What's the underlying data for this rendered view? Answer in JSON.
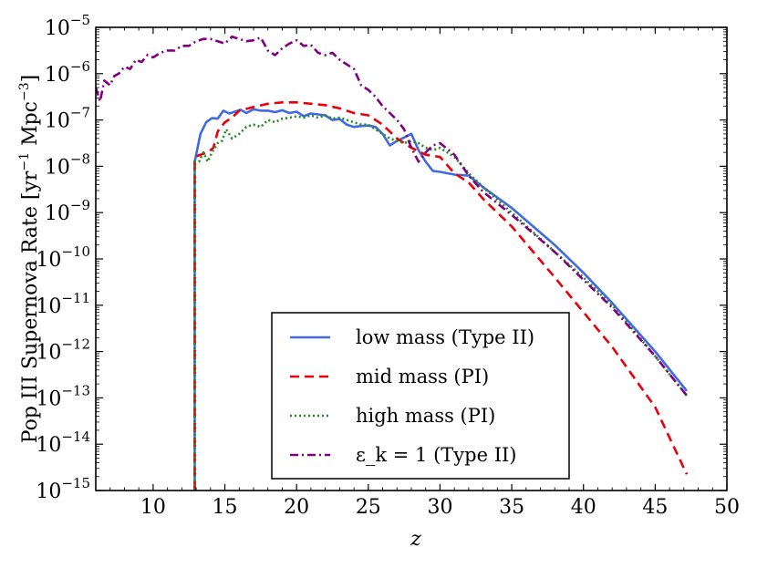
{
  "chart_data": {
    "type": "line",
    "title": "",
    "xlabel": "z",
    "ylabel": "Pop III Supernova Rate [yr⁻¹ Mpc⁻³]",
    "ylabel_parts": {
      "pre": "Pop III Supernova Rate [yr",
      "exp1": "−1",
      "mid": " Mpc",
      "exp2": "−3",
      "post": "]"
    },
    "xlim": [
      6,
      50
    ],
    "ylim_log10": [
      -15,
      -5
    ],
    "y_scale": "log",
    "x_ticks": [
      10,
      15,
      20,
      25,
      30,
      35,
      40,
      45,
      50
    ],
    "y_ticks": [
      {
        "base": "10",
        "exp": "−5",
        "log": -5
      },
      {
        "base": "10",
        "exp": "−6",
        "log": -6
      },
      {
        "base": "10",
        "exp": "−7",
        "log": -7
      },
      {
        "base": "10",
        "exp": "−8",
        "log": -8
      },
      {
        "base": "10",
        "exp": "−9",
        "log": -9
      },
      {
        "base": "10",
        "exp": "−10",
        "log": -10
      },
      {
        "base": "10",
        "exp": "−11",
        "log": -11
      },
      {
        "base": "10",
        "exp": "−12",
        "log": -12
      },
      {
        "base": "10",
        "exp": "−13",
        "log": -13
      },
      {
        "base": "10",
        "exp": "−14",
        "log": -14
      },
      {
        "base": "10",
        "exp": "−15",
        "log": -15
      }
    ],
    "legend_position": "lower-center",
    "series": [
      {
        "name": "low mass (Type II)",
        "color": "#4169e1",
        "dash": "solid",
        "points": [
          [
            12.9,
            -15
          ],
          [
            12.9,
            -7.9
          ],
          [
            13.3,
            -7.3
          ],
          [
            13.7,
            -7.05
          ],
          [
            14.1,
            -6.96
          ],
          [
            14.5,
            -6.97
          ],
          [
            14.9,
            -6.8
          ],
          [
            15.3,
            -6.86
          ],
          [
            15.7,
            -6.82
          ],
          [
            16.1,
            -6.78
          ],
          [
            16.5,
            -6.85
          ],
          [
            17,
            -6.77
          ],
          [
            17.5,
            -6.8
          ],
          [
            18,
            -6.8
          ],
          [
            18.5,
            -6.83
          ],
          [
            19,
            -6.79
          ],
          [
            19.5,
            -6.85
          ],
          [
            20,
            -6.82
          ],
          [
            20.5,
            -6.92
          ],
          [
            21,
            -6.86
          ],
          [
            21.5,
            -6.88
          ],
          [
            22,
            -6.9
          ],
          [
            22.5,
            -7.0
          ],
          [
            23,
            -6.98
          ],
          [
            23.5,
            -7.1
          ],
          [
            24,
            -7.15
          ],
          [
            24.5,
            -7.13
          ],
          [
            25,
            -7.12
          ],
          [
            25.5,
            -7.15
          ],
          [
            26,
            -7.3
          ],
          [
            26.5,
            -7.55
          ],
          [
            27,
            -7.45
          ],
          [
            27.5,
            -7.38
          ],
          [
            28,
            -7.3
          ],
          [
            28.5,
            -7.65
          ],
          [
            29,
            -7.9
          ],
          [
            29.5,
            -8.1
          ],
          [
            30,
            -8.12
          ],
          [
            31,
            -8.18
          ],
          [
            32,
            -8.2
          ],
          [
            33,
            -8.45
          ],
          [
            35,
            -8.9
          ],
          [
            38,
            -9.7
          ],
          [
            40,
            -10.3
          ],
          [
            42,
            -10.95
          ],
          [
            45,
            -12.0
          ],
          [
            47.2,
            -12.85
          ]
        ]
      },
      {
        "name": "mid mass (PI)",
        "color": "#e8000b",
        "dash": "10,6",
        "points": [
          [
            12.9,
            -15
          ],
          [
            12.9,
            -7.8
          ],
          [
            13.3,
            -7.75
          ],
          [
            13.8,
            -7.7
          ],
          [
            14.2,
            -7.6
          ],
          [
            14.5,
            -7.25
          ],
          [
            15,
            -7.05
          ],
          [
            15.5,
            -6.95
          ],
          [
            16,
            -6.8
          ],
          [
            17,
            -6.72
          ],
          [
            18,
            -6.65
          ],
          [
            19,
            -6.62
          ],
          [
            20,
            -6.62
          ],
          [
            21,
            -6.65
          ],
          [
            22,
            -6.68
          ],
          [
            23,
            -6.75
          ],
          [
            24,
            -6.85
          ],
          [
            25,
            -6.9
          ],
          [
            26,
            -7.1
          ],
          [
            27,
            -7.4
          ],
          [
            28,
            -7.6
          ],
          [
            29,
            -7.75
          ],
          [
            30,
            -7.8
          ],
          [
            31,
            -8.15
          ],
          [
            32,
            -8.35
          ],
          [
            33,
            -8.7
          ],
          [
            35,
            -9.3
          ],
          [
            38,
            -10.4
          ],
          [
            40,
            -11.15
          ],
          [
            42,
            -11.9
          ],
          [
            45,
            -13.2
          ],
          [
            47.2,
            -14.65
          ]
        ]
      },
      {
        "name": "high mass (PI)",
        "color": "#228b22",
        "dash": "2,3",
        "points": [
          [
            12.9,
            -15
          ],
          [
            12.9,
            -7.9
          ],
          [
            13.2,
            -7.9
          ],
          [
            13.5,
            -7.7
          ],
          [
            13.8,
            -7.9
          ],
          [
            14.1,
            -7.7
          ],
          [
            14.5,
            -7.5
          ],
          [
            14.8,
            -7.45
          ],
          [
            15.1,
            -7.2
          ],
          [
            15.5,
            -7.4
          ],
          [
            16,
            -7.3
          ],
          [
            16.5,
            -7.15
          ],
          [
            17,
            -7.1
          ],
          [
            17.5,
            -7.15
          ],
          [
            18,
            -7.0
          ],
          [
            18.5,
            -7.05
          ],
          [
            19,
            -6.97
          ],
          [
            19.5,
            -6.95
          ],
          [
            20,
            -6.92
          ],
          [
            20.5,
            -6.95
          ],
          [
            21,
            -6.9
          ],
          [
            21.5,
            -6.95
          ],
          [
            22,
            -6.9
          ],
          [
            22.5,
            -6.97
          ],
          [
            23,
            -6.95
          ],
          [
            23.5,
            -7.0
          ],
          [
            24,
            -7.05
          ],
          [
            24.5,
            -7.1
          ],
          [
            25,
            -7.1
          ],
          [
            25.5,
            -7.2
          ],
          [
            26,
            -7.3
          ],
          [
            26.5,
            -7.4
          ],
          [
            27,
            -7.45
          ],
          [
            27.5,
            -7.5
          ],
          [
            28,
            -7.45
          ],
          [
            28.5,
            -7.5
          ],
          [
            29,
            -7.6
          ],
          [
            29.5,
            -7.65
          ],
          [
            30,
            -7.6
          ],
          [
            31,
            -7.8
          ],
          [
            32,
            -8.15
          ],
          [
            33,
            -8.45
          ],
          [
            35,
            -9.0
          ],
          [
            38,
            -9.85
          ],
          [
            40,
            -10.4
          ],
          [
            42,
            -11.0
          ],
          [
            45,
            -12.1
          ],
          [
            47.2,
            -12.95
          ]
        ]
      },
      {
        "name": "ε_k = 1 (Type II)",
        "color": "#800080",
        "dash": "9,4,2,4",
        "points": [
          [
            6,
            -6.3
          ],
          [
            6.3,
            -6.6
          ],
          [
            6.6,
            -6.15
          ],
          [
            7,
            -6.25
          ],
          [
            7.3,
            -6.05
          ],
          [
            7.6,
            -6.0
          ],
          [
            8,
            -5.85
          ],
          [
            8.4,
            -5.9
          ],
          [
            8.8,
            -5.7
          ],
          [
            9.2,
            -5.75
          ],
          [
            9.6,
            -5.6
          ],
          [
            10,
            -5.65
          ],
          [
            10.5,
            -5.55
          ],
          [
            11,
            -5.5
          ],
          [
            11.5,
            -5.5
          ],
          [
            12,
            -5.4
          ],
          [
            12.5,
            -5.4
          ],
          [
            13,
            -5.3
          ],
          [
            13.5,
            -5.25
          ],
          [
            14,
            -5.25
          ],
          [
            14.5,
            -5.3
          ],
          [
            15,
            -5.35
          ],
          [
            15.5,
            -5.2
          ],
          [
            16,
            -5.25
          ],
          [
            16.5,
            -5.3
          ],
          [
            17,
            -5.28
          ],
          [
            17.5,
            -5.22
          ],
          [
            18,
            -5.5
          ],
          [
            18.5,
            -5.6
          ],
          [
            19,
            -5.45
          ],
          [
            19.5,
            -5.35
          ],
          [
            20,
            -5.28
          ],
          [
            20.5,
            -5.4
          ],
          [
            21,
            -5.38
          ],
          [
            21.5,
            -5.55
          ],
          [
            22,
            -5.6
          ],
          [
            22.5,
            -5.55
          ],
          [
            23,
            -5.7
          ],
          [
            23.5,
            -5.8
          ],
          [
            24,
            -5.9
          ],
          [
            24.5,
            -6.25
          ],
          [
            25,
            -6.35
          ],
          [
            25.5,
            -6.5
          ],
          [
            26,
            -6.7
          ],
          [
            26.5,
            -6.85
          ],
          [
            27,
            -7.0
          ],
          [
            27.5,
            -7.2
          ],
          [
            28,
            -7.6
          ],
          [
            28.5,
            -7.9
          ],
          [
            29,
            -7.7
          ],
          [
            29.5,
            -7.55
          ],
          [
            30,
            -7.5
          ],
          [
            31,
            -7.75
          ],
          [
            32,
            -8.2
          ],
          [
            33,
            -8.55
          ],
          [
            35,
            -9.05
          ],
          [
            38,
            -9.85
          ],
          [
            40,
            -10.45
          ],
          [
            42,
            -11.05
          ],
          [
            45,
            -12.1
          ],
          [
            47.2,
            -12.95
          ]
        ]
      }
    ]
  }
}
